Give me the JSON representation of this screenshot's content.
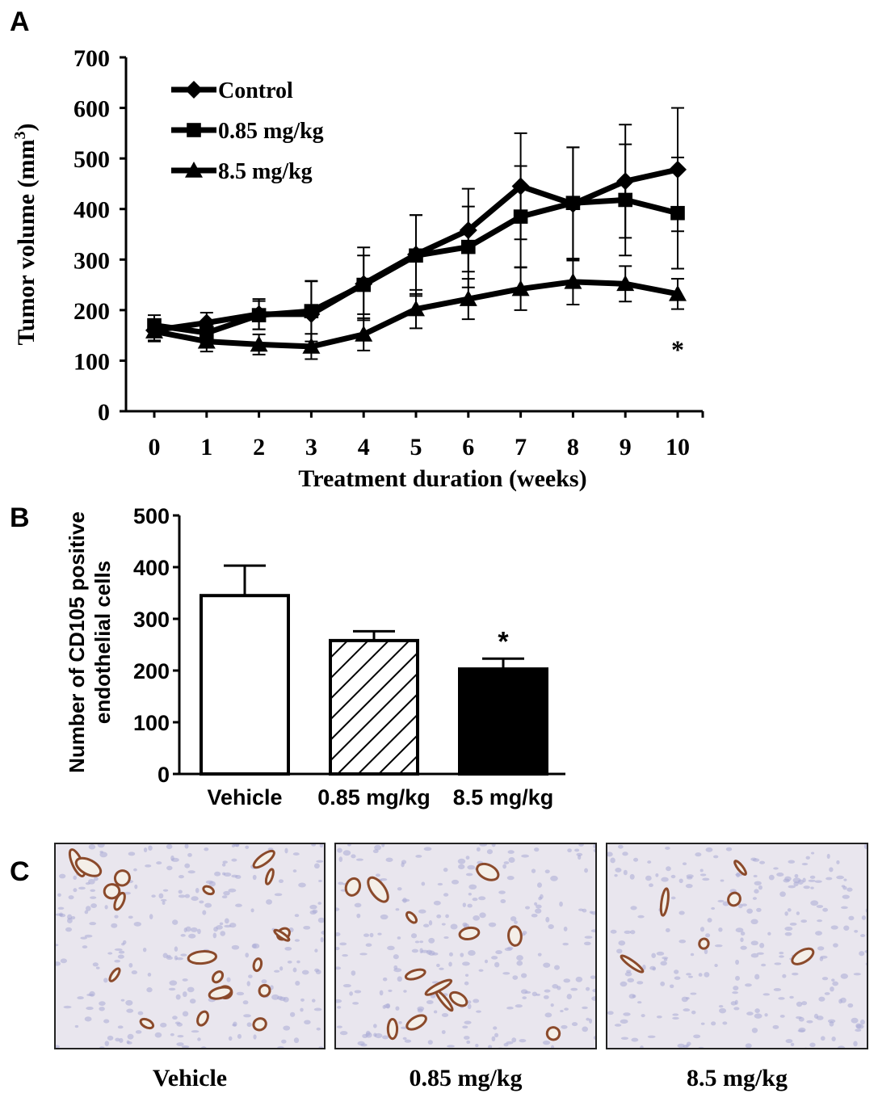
{
  "panels": {
    "a": "A",
    "b": "B",
    "c": "C"
  },
  "chart_data": [
    {
      "type": "line",
      "x": [
        0,
        1,
        2,
        3,
        4,
        5,
        6,
        7,
        8,
        9,
        10
      ],
      "xlabel": "Treatment duration (weeks)",
      "ylabel_main": "Tumor volume (mm",
      "ylabel_sup": "3",
      "ylabel_close": ")",
      "ylim": [
        0,
        700
      ],
      "yticks": [
        0,
        100,
        200,
        300,
        400,
        500,
        600,
        700
      ],
      "legend_position": "top-left",
      "series": [
        {
          "name": "Control",
          "marker": "diamond",
          "values": [
            160,
            175,
            192,
            192,
            252,
            310,
            358,
            445,
            410,
            455,
            478
          ],
          "errors": [
            20,
            20,
            30,
            65,
            72,
            78,
            82,
            105,
            112,
            112,
            122
          ]
        },
        {
          "name": "0.85 mg/kg",
          "marker": "square",
          "values": [
            170,
            155,
            190,
            198,
            250,
            308,
            325,
            385,
            412,
            418,
            392
          ],
          "errors": [
            20,
            20,
            28,
            60,
            58,
            80,
            80,
            100,
            110,
            110,
            110
          ]
        },
        {
          "name": "8.5 mg/kg",
          "marker": "triangle",
          "values": [
            158,
            138,
            132,
            128,
            152,
            202,
            222,
            242,
            256,
            252,
            232
          ],
          "errors": [
            20,
            20,
            20,
            25,
            32,
            38,
            40,
            42,
            45,
            35,
            30
          ]
        }
      ],
      "annotation": "*",
      "annotation_x": 10,
      "annotation_y": 140
    },
    {
      "type": "bar",
      "categories": [
        "Vehicle",
        "0.85 mg/kg",
        "8.5 mg/kg"
      ],
      "values": [
        345,
        258,
        203
      ],
      "errors": [
        58,
        18,
        20
      ],
      "fills": [
        "white",
        "hatched",
        "black"
      ],
      "ylabel_line1": "Number of CD105 positive",
      "ylabel_line2": "endothelial cells",
      "ylim": [
        0,
        500
      ],
      "yticks": [
        0,
        100,
        200,
        300,
        400,
        500
      ],
      "annotation": "*",
      "annotation_index": 2
    }
  ],
  "micrographs": [
    {
      "label": "Vehicle",
      "density": "high"
    },
    {
      "label": "0.85 mg/kg",
      "density": "medium"
    },
    {
      "label": "8.5 mg/kg",
      "density": "low"
    }
  ],
  "colors": {
    "stain_brown": "#8b4a2b",
    "hematoxylin_blue": "#a9a9d6",
    "background": "#e9e6ee"
  }
}
